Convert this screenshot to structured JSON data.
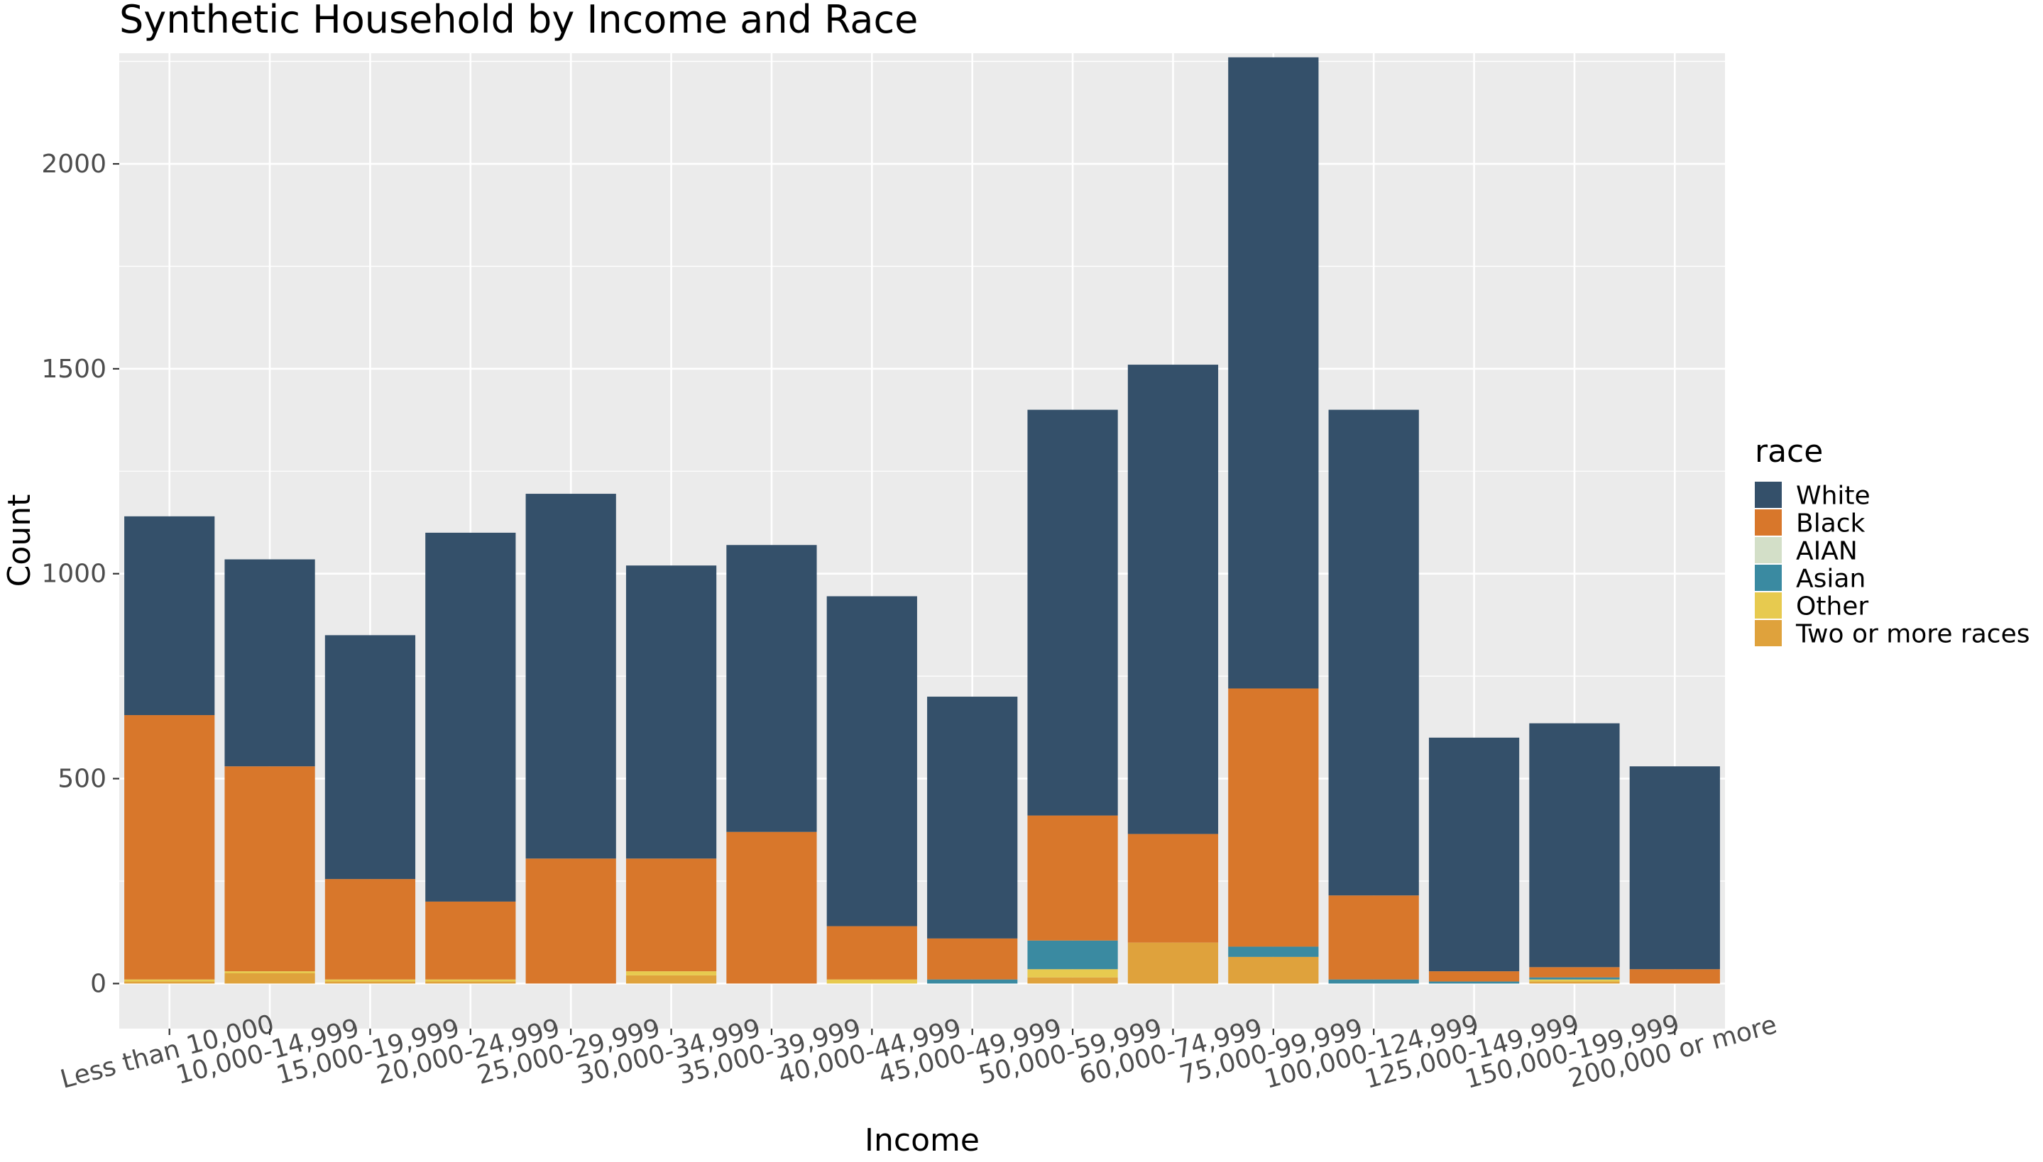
{
  "chart_data": {
    "type": "bar",
    "stacked": true,
    "title": "Synthetic Household by Income and Race",
    "xlabel": "Income",
    "ylabel": "Count",
    "ylim": [
      -110,
      2270
    ],
    "yticks": [
      0,
      500,
      1000,
      1500,
      2000
    ],
    "grid": true,
    "legend_title": "race",
    "legend_position": "right",
    "categories": [
      "Less than 10,000",
      "10,000-14,999",
      "15,000-19,999",
      "20,000-24,999",
      "25,000-29,999",
      "30,000-34,999",
      "35,000-39,999",
      "40,000-44,999",
      "45,000-49,999",
      "50,000-59,999",
      "60,000-74,999",
      "75,000-99,999",
      "100,000-124,999",
      "125,000-149,999",
      "150,000-199,999",
      "200,000 or more"
    ],
    "series": [
      {
        "name": "White",
        "color": "#34506a",
        "values": [
          485,
          505,
          595,
          900,
          890,
          715,
          700,
          805,
          590,
          990,
          1145,
          1540,
          1185,
          570,
          595,
          495
        ]
      },
      {
        "name": "Black",
        "color": "#d8772b",
        "values": [
          645,
          500,
          245,
          190,
          305,
          275,
          370,
          130,
          100,
          305,
          265,
          630,
          205,
          25,
          25,
          35
        ]
      },
      {
        "name": "AIAN",
        "color": "#d3dfc8",
        "values": [
          0,
          0,
          0,
          0,
          0,
          0,
          0,
          0,
          0,
          0,
          0,
          0,
          0,
          0,
          0,
          0
        ]
      },
      {
        "name": "Asian",
        "color": "#3a8aa1",
        "values": [
          0,
          0,
          0,
          0,
          0,
          0,
          0,
          0,
          10,
          70,
          0,
          25,
          10,
          5,
          5,
          0
        ]
      },
      {
        "name": "Other",
        "color": "#e7ca4f",
        "values": [
          5,
          5,
          5,
          5,
          0,
          10,
          0,
          10,
          0,
          20,
          0,
          0,
          0,
          0,
          5,
          0
        ]
      },
      {
        "name": "Two or more races",
        "color": "#dfa23c",
        "values": [
          5,
          25,
          5,
          5,
          0,
          20,
          0,
          0,
          0,
          15,
          100,
          65,
          0,
          0,
          5,
          0
        ]
      }
    ]
  }
}
